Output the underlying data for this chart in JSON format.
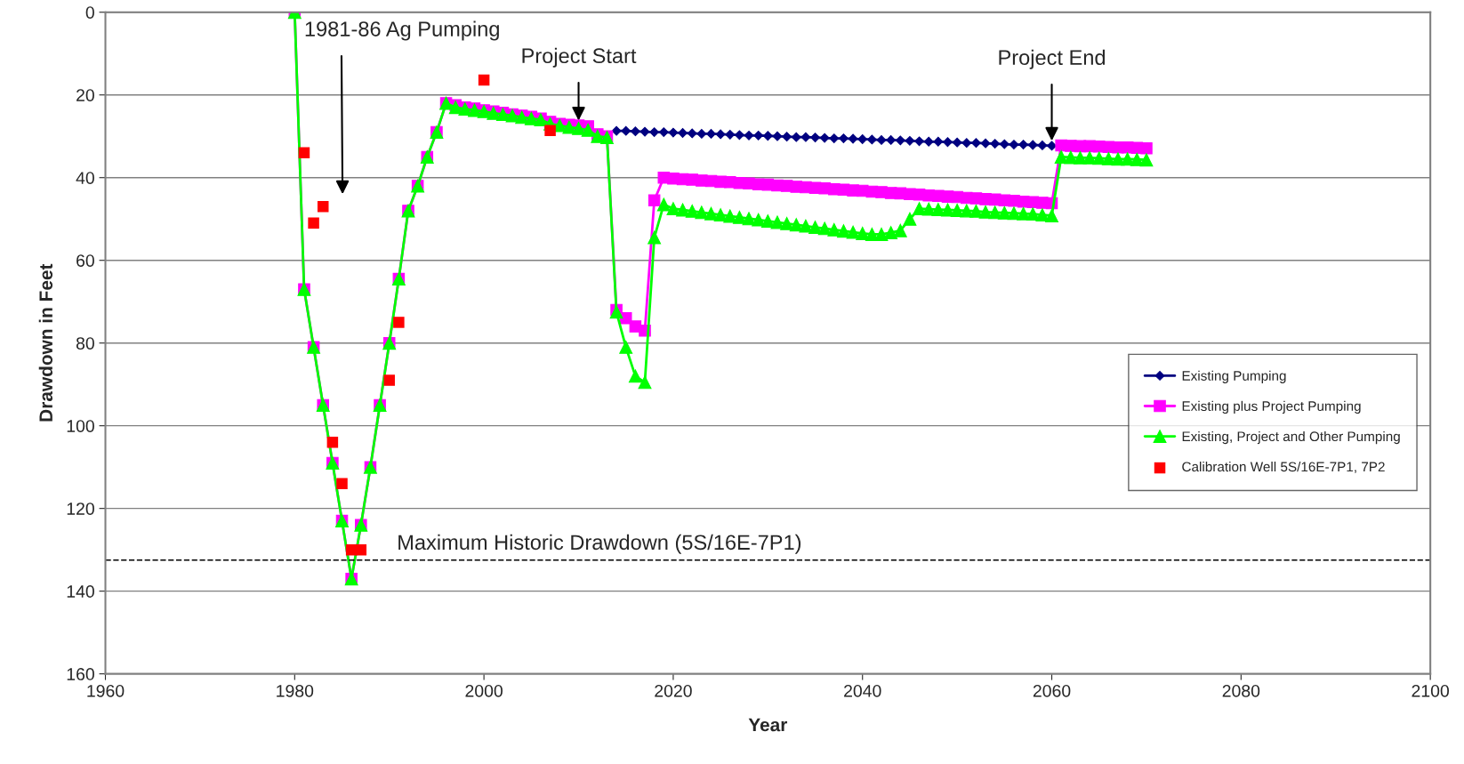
{
  "chart_data": {
    "type": "line",
    "xlabel": "Year",
    "ylabel": "Drawdown in Feet",
    "xlim": [
      1960,
      2100
    ],
    "xticks": [
      1960,
      1980,
      2000,
      2020,
      2040,
      2060,
      2080,
      2100
    ],
    "ylim": [
      160,
      0
    ],
    "yticks": [
      0,
      20,
      40,
      60,
      80,
      100,
      120,
      140,
      160
    ],
    "grid": "y",
    "legend": "right",
    "series": [
      {
        "name": "Existing Pumping",
        "color": "#000080",
        "marker": "diamond",
        "x": [
          2014,
          2015,
          2016,
          2017,
          2018,
          2019,
          2020,
          2021,
          2022,
          2023,
          2024,
          2025,
          2026,
          2027,
          2028,
          2029,
          2030,
          2031,
          2032,
          2033,
          2034,
          2035,
          2036,
          2037,
          2038,
          2039,
          2040,
          2041,
          2042,
          2043,
          2044,
          2045,
          2046,
          2047,
          2048,
          2049,
          2050,
          2051,
          2052,
          2053,
          2054,
          2055,
          2056,
          2057,
          2058,
          2059,
          2060
        ],
        "values": [
          28.7,
          28.7,
          28.8,
          28.9,
          29.0,
          29.0,
          29.1,
          29.2,
          29.3,
          29.4,
          29.4,
          29.5,
          29.6,
          29.7,
          29.8,
          29.8,
          29.9,
          30.0,
          30.1,
          30.2,
          30.2,
          30.3,
          30.4,
          30.5,
          30.5,
          30.6,
          30.7,
          30.8,
          30.9,
          30.9,
          31.0,
          31.1,
          31.2,
          31.3,
          31.3,
          31.4,
          31.5,
          31.6,
          31.6,
          31.7,
          31.8,
          31.9,
          32.0,
          32.0,
          32.1,
          32.2,
          32.3
        ]
      },
      {
        "name": "Existing plus Project Pumping",
        "color": "#ff00ff",
        "marker": "square",
        "x": [
          1980,
          1981,
          1982,
          1983,
          1984,
          1985,
          1986,
          1987,
          1988,
          1989,
          1990,
          1991,
          1992,
          1993,
          1994,
          1995,
          1996,
          1997,
          1998,
          1999,
          2000,
          2001,
          2002,
          2003,
          2004,
          2005,
          2006,
          2007,
          2008,
          2009,
          2010,
          2011,
          2012,
          2013,
          2014,
          2015,
          2016,
          2017,
          2018,
          2019,
          2020,
          2021,
          2022,
          2023,
          2024,
          2025,
          2026,
          2027,
          2028,
          2029,
          2030,
          2031,
          2032,
          2033,
          2034,
          2035,
          2036,
          2037,
          2038,
          2039,
          2040,
          2041,
          2042,
          2043,
          2044,
          2045,
          2046,
          2047,
          2048,
          2049,
          2050,
          2051,
          2052,
          2053,
          2054,
          2055,
          2056,
          2057,
          2058,
          2059,
          2060,
          2061,
          2062,
          2063,
          2064,
          2065,
          2066,
          2067,
          2068,
          2069,
          2070
        ],
        "values": [
          0,
          67,
          81,
          95,
          109,
          123,
          137,
          124,
          110,
          95,
          80,
          64.5,
          48,
          42,
          35,
          29,
          22,
          22.5,
          23,
          23.3,
          23.7,
          24,
          24.3,
          24.7,
          25,
          25.3,
          25.7,
          26.5,
          27,
          27.2,
          27.4,
          27.6,
          29.5,
          30,
          72,
          74,
          76,
          77,
          45.5,
          40,
          40.2,
          40.4,
          40.5,
          40.7,
          40.8,
          41.0,
          41.1,
          41.3,
          41.4,
          41.6,
          41.7,
          41.9,
          42.0,
          42.2,
          42.3,
          42.5,
          42.6,
          42.8,
          42.9,
          43.1,
          43.2,
          43.4,
          43.5,
          43.7,
          43.8,
          44.0,
          44.1,
          44.3,
          44.4,
          44.6,
          44.7,
          44.9,
          45.0,
          45.2,
          45.3,
          45.5,
          45.6,
          45.8,
          45.9,
          46.1,
          46.2,
          32.2,
          32.3,
          32.4,
          32.4,
          32.5,
          32.6,
          32.7,
          32.7,
          32.8,
          32.9
        ]
      },
      {
        "name": "Existing, Project and Other Pumping",
        "color": "#00ff00",
        "marker": "triangle",
        "x": [
          1980,
          1981,
          1982,
          1983,
          1984,
          1985,
          1986,
          1987,
          1988,
          1989,
          1990,
          1991,
          1992,
          1993,
          1994,
          1995,
          1996,
          1997,
          1998,
          1999,
          2000,
          2001,
          2002,
          2003,
          2004,
          2005,
          2006,
          2007,
          2008,
          2009,
          2010,
          2011,
          2012,
          2013,
          2014,
          2015,
          2016,
          2017,
          2018,
          2019,
          2020,
          2021,
          2022,
          2023,
          2024,
          2025,
          2026,
          2027,
          2028,
          2029,
          2030,
          2031,
          2032,
          2033,
          2034,
          2035,
          2036,
          2037,
          2038,
          2039,
          2040,
          2041,
          2042,
          2043,
          2044,
          2045,
          2046,
          2047,
          2048,
          2049,
          2050,
          2051,
          2052,
          2053,
          2054,
          2055,
          2056,
          2057,
          2058,
          2059,
          2060,
          2061,
          2062,
          2063,
          2064,
          2065,
          2066,
          2067,
          2068,
          2069,
          2070
        ],
        "values": [
          0,
          67,
          81,
          95,
          109,
          123,
          137,
          124,
          110,
          95,
          80,
          64.5,
          48,
          42,
          35,
          29,
          22,
          23,
          23.4,
          23.7,
          24,
          24.4,
          24.7,
          25,
          25.4,
          25.7,
          26,
          27,
          27.4,
          27.8,
          28.1,
          28.5,
          30,
          30.3,
          72.5,
          81,
          88,
          89.5,
          54.5,
          46.5,
          47.5,
          47.8,
          48.1,
          48.4,
          48.7,
          49.0,
          49.3,
          49.6,
          49.9,
          50.2,
          50.5,
          50.8,
          51.1,
          51.4,
          51.7,
          52.0,
          52.3,
          52.6,
          52.9,
          53.2,
          53.5,
          53.7,
          53.7,
          53.3,
          52.8,
          50,
          47.5,
          47.6,
          47.7,
          47.8,
          47.9,
          48.0,
          48.1,
          48.3,
          48.4,
          48.5,
          48.6,
          48.7,
          48.8,
          49.0,
          49.2,
          35,
          35.1,
          35.2,
          35.2,
          35.3,
          35.4,
          35.5,
          35.5,
          35.6,
          35.7
        ]
      },
      {
        "name": "Calibration Well 5S/16E-7P1, 7P2",
        "type": "scatter",
        "color": "#ff0000",
        "marker": "square",
        "x": [
          1981,
          1982,
          1983,
          1984,
          1985,
          1986,
          1987,
          1990,
          1991,
          2000,
          2007
        ],
        "values": [
          34,
          51,
          47,
          104,
          114,
          130,
          130,
          89,
          75,
          16.4,
          28.6
        ]
      }
    ],
    "ref_lines": [
      {
        "axis": "y",
        "value": 132.5,
        "label": "Maximum Historic Drawdown (5S/16E-7P1)",
        "line_style": "dashed",
        "color": "#000000"
      }
    ],
    "annotations": [
      "1981-86 Ag Pumping",
      {
        "text": "Project Start",
        "x": 2010,
        "y": 27.4
      },
      {
        "text": "Project End",
        "x": 2060,
        "y": 32.3
      }
    ]
  }
}
